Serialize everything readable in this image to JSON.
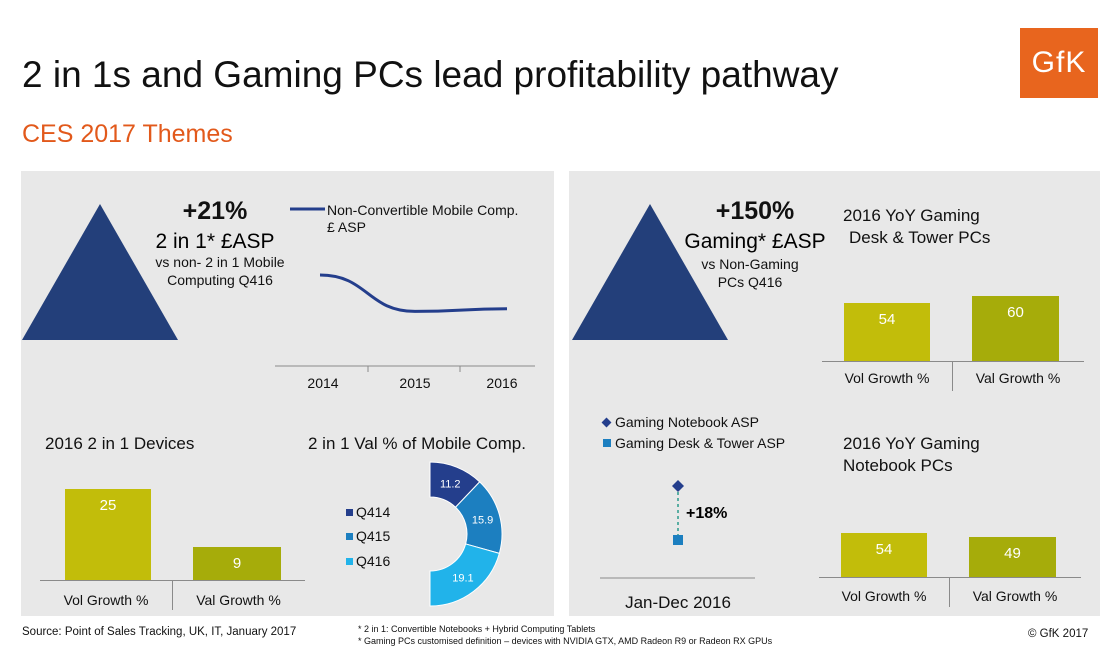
{
  "title": "2 in 1s and Gaming PCs lead profitability pathway",
  "subtitle": "CES 2017 Themes",
  "logo_text": "GfK",
  "colors": {
    "accent": "#e8651e",
    "triangle": "#233f7a",
    "bar_yellow": "#c2bd0a",
    "bar_olive": "#a6ac0a",
    "line": "#243e8c",
    "donut_q414": "#243e8c",
    "donut_q415": "#1c7fc0",
    "donut_q416": "#21b3ea"
  },
  "left_panel": {
    "highlight_value": "+21%",
    "highlight_label": "2 in 1* £ASP",
    "highlight_desc_1": "vs non- 2 in 1 Mobile",
    "highlight_desc_2": "Computing Q416",
    "line_legend_1": "Non-Convertible Mobile Comp.",
    "line_legend_2": "£ ASP",
    "devices_title": "2016 2 in 1 Devices",
    "donut_title": "2 in 1 Val % of Mobile  Comp."
  },
  "right_panel": {
    "highlight_value": "+150%",
    "highlight_label": "Gaming* £ASP",
    "highlight_desc_1": "vs Non-Gaming",
    "highlight_desc_2": "PCs Q416",
    "desk_title_1": "2016 YoY Gaming",
    "desk_title_2": "Desk & Tower PCs",
    "notebook_title_1": "2016 YoY Gaming",
    "notebook_title_2": "Notebook PCs",
    "asp_legend_1": "Gaming Notebook ASP",
    "asp_legend_2": "Gaming Desk & Tower ASP",
    "asp_delta": "+18%",
    "asp_x_label": "Jan-Dec 2016"
  },
  "footer": {
    "source": "Source: Point of Sales Tracking, UK, IT, January 2017",
    "note_1": "* 2 in 1: Convertible Notebooks + Hybrid Computing Tablets",
    "note_2": "* Gaming PCs customised definition – devices with NVIDIA GTX, AMD Radeon R9 or Radeon RX GPUs",
    "copyright": "© GfK 2017"
  },
  "chart_data": [
    {
      "type": "line",
      "x": [
        "2014",
        "2015",
        "2016"
      ],
      "series": [
        {
          "name": "Non-Convertible Mobile Comp. £ ASP",
          "values": [
            100,
            86,
            87
          ]
        }
      ]
    },
    {
      "type": "bar",
      "title": "2016 2 in 1 Devices",
      "categories": [
        "Vol Growth %",
        "Val Growth %"
      ],
      "values": [
        25,
        9
      ]
    },
    {
      "type": "pie",
      "title": "2 in 1 Val % of Mobile  Comp.",
      "categories": [
        "Q414",
        "Q415",
        "Q416"
      ],
      "values": [
        11.2,
        15.9,
        19.1
      ]
    },
    {
      "type": "bar",
      "title": "2016 YoY Gaming Desk & Tower PCs",
      "categories": [
        "Vol Growth %",
        "Val Growth %"
      ],
      "values": [
        54,
        60
      ]
    },
    {
      "type": "bar",
      "title": "2016 YoY Gaming Notebook PCs",
      "categories": [
        "Vol Growth %",
        "Val Growth %"
      ],
      "values": [
        54,
        49
      ]
    },
    {
      "type": "scatter",
      "x": [
        "Jan-Dec 2016"
      ],
      "series": [
        {
          "name": "Gaming Notebook ASP",
          "values": [
            118
          ]
        },
        {
          "name": "Gaming Desk & Tower ASP",
          "values": [
            100
          ]
        }
      ]
    }
  ]
}
